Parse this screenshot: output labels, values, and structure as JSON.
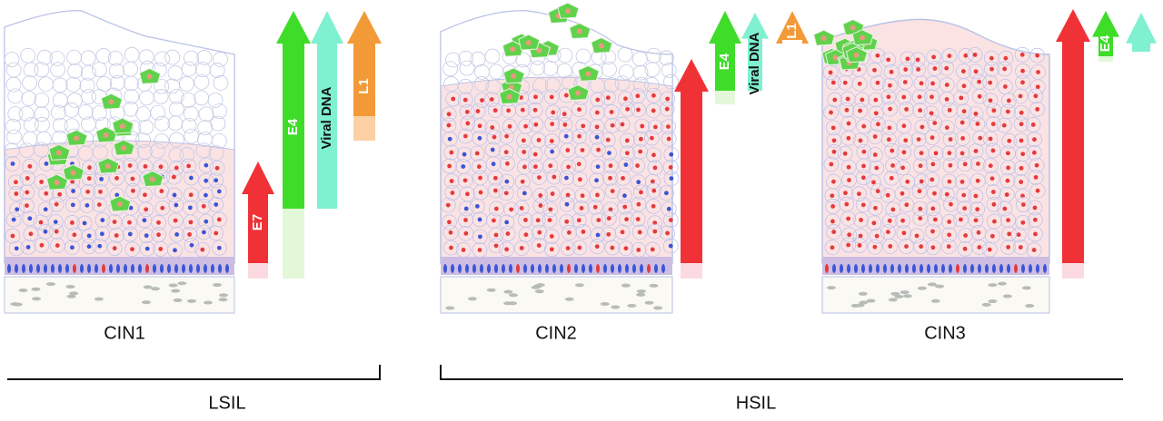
{
  "panels": [
    {
      "label": "CIN1",
      "arrows": [
        {
          "label": "E7"
        },
        {
          "label": "E4"
        },
        {
          "label": "Viral DNA"
        },
        {
          "label": "L1"
        }
      ]
    },
    {
      "label": "CIN2",
      "arrows": [
        {
          "label": "E4"
        },
        {
          "label": "Viral DNA"
        },
        {
          "label": "L1"
        }
      ]
    },
    {
      "label": "CIN3",
      "arrows": [
        {
          "label": "E4"
        }
      ]
    }
  ],
  "groups": [
    {
      "label": "LSIL"
    },
    {
      "label": "HSIL"
    }
  ]
}
